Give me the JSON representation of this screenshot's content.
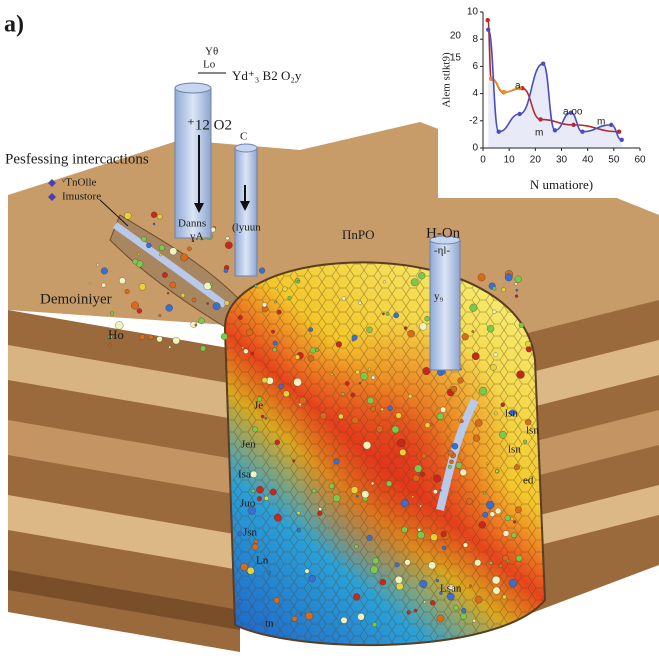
{
  "header": {
    "panel_label": "a)"
  },
  "labels": {
    "top_formula_1": "Yθ",
    "top_formula_2": "Lo",
    "top_formula_3": "Yd⁺₃ B2 O₂y",
    "pipe_1": "⁺12 O2",
    "pipe_2": "C",
    "processing": "Pesfessing intercactions",
    "pipe_1_inner_1": "Danns",
    "pipe_1_inner_2": "ɣA",
    "pipe_2_inner": "(lyuun",
    "zone_top": "ΠnPO",
    "pipe_3": "H-On",
    "pipe_3_sub": "-ηl-",
    "pipe_3_inner": "y₉",
    "left_zone": "Demoiniyer",
    "left_zone_sub": "Ho",
    "cavity_left": [
      "Je",
      "Jen",
      "Isa",
      "Juo",
      "Jsn",
      "Ln",
      "tn"
    ],
    "cavity_right": [
      "lsn",
      "lsn",
      "lsn",
      "ed"
    ],
    "cavity_bottom": "Lsan"
  },
  "legend": [
    "ᵛTnOlle",
    "Imustore"
  ],
  "inset_chart": {
    "type": "line",
    "x_label": "N umatiore)",
    "y_label": "Alem stlkt9)",
    "xlim": [
      0,
      60
    ],
    "ylim": [
      0,
      10
    ],
    "xticks": [
      0,
      10,
      20,
      30,
      40,
      50,
      60
    ],
    "yticks": [
      0,
      {
        "value": 2,
        "label": "-2"
      },
      4,
      6,
      8,
      10
    ],
    "extra_axis_labels": [
      "20",
      "15"
    ],
    "series": [
      {
        "name": "red",
        "color": "#c0261c",
        "x": [
          1.8,
          3.2,
          7.9,
          15,
          22,
          34.6,
          52
        ],
        "values": [
          9.4,
          5.1,
          4.1,
          4.4,
          2.1,
          1.7,
          1.2
        ]
      },
      {
        "name": "orange",
        "color": "#e8962a",
        "x": [
          3.2,
          8.2,
          14
        ],
        "values": [
          5.1,
          4.1,
          4.4
        ]
      },
      {
        "name": "blue",
        "color": "#4a4fc0",
        "x": [
          2,
          6,
          14,
          23,
          27.5,
          33.6,
          38,
          49,
          53
        ],
        "values": [
          8.7,
          1.2,
          2.5,
          6.2,
          1.3,
          2.6,
          1.2,
          1.7,
          0.6
        ]
      }
    ],
    "point_labels": [
      "a",
      "m",
      "a oo",
      "m"
    ]
  }
}
